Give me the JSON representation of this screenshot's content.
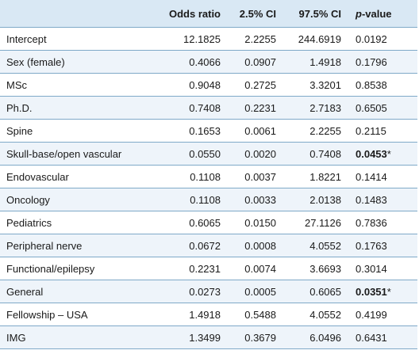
{
  "table": {
    "headers": {
      "label": "",
      "odds_ratio": "Odds ratio",
      "ci_low": "2.5% CI",
      "ci_high": "97.5% CI",
      "p_italic": "p",
      "p_rest": "-value"
    },
    "rows": [
      {
        "label": "Intercept",
        "or": "12.1825",
        "lo": "2.2255",
        "hi": "244.6919",
        "p": "0.0192",
        "sig": ""
      },
      {
        "label": "Sex (female)",
        "or": "0.4066",
        "lo": "0.0907",
        "hi": "1.4918",
        "p": "0.1796",
        "sig": ""
      },
      {
        "label": "MSc",
        "or": "0.9048",
        "lo": "0.2725",
        "hi": "3.3201",
        "p": "0.8538",
        "sig": ""
      },
      {
        "label": "Ph.D.",
        "or": "0.7408",
        "lo": "0.2231",
        "hi": "2.7183",
        "p": "0.6505",
        "sig": ""
      },
      {
        "label": "Spine",
        "or": "0.1653",
        "lo": "0.0061",
        "hi": "2.2255",
        "p": "0.2115",
        "sig": ""
      },
      {
        "label": "Skull-base/open vascular",
        "or": "0.0550",
        "lo": "0.0020",
        "hi": "0.7408",
        "p": "0.0453",
        "sig": "*"
      },
      {
        "label": "Endovascular",
        "or": "0.1108",
        "lo": "0.0037",
        "hi": "1.8221",
        "p": "0.1414",
        "sig": ""
      },
      {
        "label": "Oncology",
        "or": "0.1108",
        "lo": "0.0033",
        "hi": "2.0138",
        "p": "0.1483",
        "sig": ""
      },
      {
        "label": "Pediatrics",
        "or": "0.6065",
        "lo": "0.0150",
        "hi": "27.1126",
        "p": "0.7836",
        "sig": ""
      },
      {
        "label": "Peripheral nerve",
        "or": "0.0672",
        "lo": "0.0008",
        "hi": "4.0552",
        "p": "0.1763",
        "sig": ""
      },
      {
        "label": "Functional/epilepsy",
        "or": "0.2231",
        "lo": "0.0074",
        "hi": "3.6693",
        "p": "0.3014",
        "sig": ""
      },
      {
        "label": "General",
        "or": "0.0273",
        "lo": "0.0005",
        "hi": "0.6065",
        "p": "0.0351",
        "sig": "*"
      },
      {
        "label": "Fellowship – USA",
        "or": "1.4918",
        "lo": "0.5488",
        "hi": "4.0552",
        "p": "0.4199",
        "sig": ""
      },
      {
        "label": "IMG",
        "or": "1.3499",
        "lo": "0.3679",
        "hi": "6.0496",
        "p": "0.6431",
        "sig": ""
      }
    ],
    "colors": {
      "header_bg": "#d9e8f4",
      "stripe_bg": "#eef4fa",
      "rule": "#7fa9c8"
    }
  }
}
